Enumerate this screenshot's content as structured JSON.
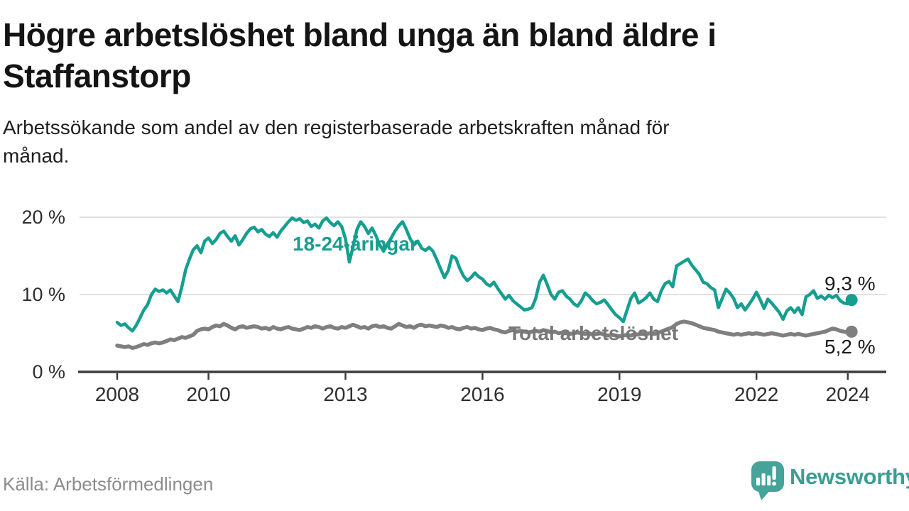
{
  "header": {
    "title": "Högre arbetslöshet bland unga än bland äldre i Staffanstorp",
    "subtitle": "Arbetssökande som andel av den registerbaserade arbetskraften månad för månad."
  },
  "footer": {
    "source": "Källa: Arbetsförmedlingen",
    "brand": "Newsworthy"
  },
  "colors": {
    "youth_line": "#169e90",
    "total_line": "#7f7f7f",
    "grid": "#d8d8d8",
    "axis": "#3c3c3c",
    "tick_text": "#2e2e2e",
    "end_label_text": "#1a1a1a",
    "brand_teal": "#45a39a"
  },
  "chart_data": {
    "type": "line",
    "title": "Högre arbetslöshet bland unga än bland äldre i Staffanstorp",
    "subtitle": "Arbetssökande som andel av den registerbaserade arbetskraften månad för månad.",
    "unit": "%",
    "frequency": "monthly",
    "start": "2008-01",
    "end": "2024-02",
    "ylim": [
      0,
      21
    ],
    "grid": true,
    "legend_position": "inline-labels",
    "y_ticks": [
      {
        "value": 0,
        "label": "0 %"
      },
      {
        "value": 10,
        "label": "10 %"
      },
      {
        "value": 20,
        "label": "20 %"
      }
    ],
    "x_ticks": [
      {
        "year": 2008,
        "label": "2008"
      },
      {
        "year": 2010,
        "label": "2010"
      },
      {
        "year": 2013,
        "label": "2013"
      },
      {
        "year": 2016,
        "label": "2016"
      },
      {
        "year": 2019,
        "label": "2019"
      },
      {
        "year": 2022,
        "label": "2022"
      },
      {
        "year": 2024,
        "label": "2024"
      }
    ],
    "series": [
      {
        "name": "18-24-åringar",
        "color": "#169e90",
        "end_label": "9,3 %",
        "end_value": 9.3,
        "values": [
          6.4,
          6.0,
          6.2,
          5.7,
          5.3,
          6.0,
          7.0,
          8.0,
          8.7,
          10.0,
          10.7,
          10.4,
          10.6,
          10.2,
          10.6,
          9.8,
          9.1,
          11.0,
          13.2,
          14.6,
          15.8,
          16.3,
          15.4,
          16.9,
          17.3,
          16.6,
          17.1,
          17.9,
          18.2,
          17.5,
          16.9,
          17.6,
          16.4,
          17.1,
          17.9,
          18.5,
          18.7,
          18.1,
          18.4,
          17.8,
          17.5,
          18.0,
          17.4,
          18.2,
          18.8,
          19.4,
          19.9,
          19.6,
          19.8,
          19.3,
          19.5,
          18.8,
          19.1,
          18.6,
          19.5,
          19.9,
          19.3,
          18.9,
          19.4,
          18.8,
          17.2,
          14.2,
          16.2,
          18.4,
          19.4,
          18.8,
          17.9,
          18.6,
          17.6,
          16.4,
          15.6,
          16.5,
          17.3,
          18.2,
          18.9,
          19.4,
          18.4,
          17.2,
          16.4,
          16.9,
          16.0,
          15.7,
          16.1,
          15.6,
          14.5,
          13.3,
          12.2,
          13.1,
          15.0,
          14.7,
          13.4,
          12.4,
          11.8,
          12.2,
          12.8,
          12.3,
          12.0,
          11.4,
          11.1,
          11.6,
          10.8,
          10.1,
          9.4,
          9.9,
          9.2,
          8.8,
          8.4,
          8.0,
          8.1,
          8.3,
          9.5,
          11.6,
          12.5,
          11.3,
          10.0,
          9.4,
          10.3,
          10.5,
          9.8,
          9.4,
          8.8,
          8.5,
          9.2,
          10.2,
          9.8,
          9.2,
          8.8,
          9.0,
          9.3,
          8.7,
          8.0,
          7.4,
          7.0,
          6.5,
          8.0,
          9.5,
          10.2,
          8.9,
          9.2,
          9.6,
          10.2,
          9.4,
          9.1,
          10.5,
          11.4,
          11.7,
          11.0,
          13.7,
          14.0,
          14.3,
          14.6,
          13.8,
          13.2,
          12.6,
          11.6,
          11.4,
          10.9,
          10.6,
          8.3,
          9.5,
          10.7,
          10.2,
          9.5,
          8.3,
          8.8,
          8.0,
          8.7,
          9.4,
          10.3,
          9.3,
          8.2,
          9.4,
          8.9,
          8.3,
          7.7,
          6.8,
          7.9,
          8.3,
          7.7,
          8.3,
          7.4,
          9.7,
          10.0,
          10.5,
          9.5,
          9.8,
          9.4,
          9.9,
          9.6,
          9.9,
          9.2,
          8.9,
          8.8,
          9.3
        ]
      },
      {
        "name": "Total arbetslöshet",
        "color": "#7f7f7f",
        "end_label": "5,2 %",
        "end_value": 5.2,
        "values": [
          3.4,
          3.3,
          3.2,
          3.3,
          3.1,
          3.2,
          3.4,
          3.6,
          3.5,
          3.7,
          3.8,
          3.7,
          3.8,
          4.0,
          4.2,
          4.1,
          4.3,
          4.5,
          4.4,
          4.6,
          4.8,
          5.3,
          5.5,
          5.6,
          5.5,
          5.8,
          6.0,
          5.9,
          6.2,
          6.0,
          5.7,
          5.5,
          5.8,
          5.9,
          5.7,
          5.8,
          5.9,
          5.8,
          5.6,
          5.7,
          5.5,
          5.8,
          5.6,
          5.5,
          5.7,
          5.8,
          5.6,
          5.5,
          5.4,
          5.6,
          5.8,
          5.7,
          5.9,
          5.8,
          5.6,
          5.8,
          5.9,
          5.7,
          5.6,
          5.8,
          5.7,
          5.9,
          6.1,
          5.9,
          5.7,
          5.8,
          5.6,
          5.9,
          6.0,
          5.8,
          5.9,
          5.7,
          5.6,
          5.9,
          6.2,
          6.0,
          5.8,
          5.9,
          5.7,
          6.0,
          6.1,
          5.9,
          6.0,
          5.9,
          5.8,
          6.0,
          5.9,
          5.7,
          5.8,
          5.6,
          5.5,
          5.7,
          5.8,
          5.6,
          5.7,
          5.5,
          5.4,
          5.6,
          5.7,
          5.5,
          5.4,
          5.2,
          5.1,
          5.3,
          5.4,
          5.2,
          5.3,
          5.2,
          5.1,
          5.2,
          5.3,
          5.2,
          5.4,
          5.3,
          5.1,
          5.2,
          5.0,
          5.1,
          5.0,
          4.9,
          5.0,
          5.1,
          5.0,
          4.9,
          5.0,
          4.8,
          4.9,
          5.0,
          4.8,
          4.7,
          4.8,
          4.7,
          4.6,
          4.7,
          4.8,
          4.7,
          4.9,
          4.8,
          5.0,
          4.9,
          5.0,
          4.9,
          5.0,
          5.2,
          5.4,
          5.6,
          5.8,
          6.2,
          6.4,
          6.5,
          6.4,
          6.3,
          6.1,
          5.9,
          5.7,
          5.6,
          5.5,
          5.4,
          5.2,
          5.1,
          5.0,
          4.9,
          4.8,
          4.9,
          4.8,
          4.9,
          5.0,
          4.9,
          5.0,
          4.9,
          4.8,
          4.9,
          5.0,
          4.9,
          4.8,
          4.7,
          4.8,
          4.9,
          4.8,
          4.9,
          4.8,
          4.7,
          4.8,
          4.9,
          5.0,
          5.1,
          5.2,
          5.4,
          5.6,
          5.5,
          5.3,
          5.2,
          5.1,
          5.2
        ]
      }
    ]
  }
}
